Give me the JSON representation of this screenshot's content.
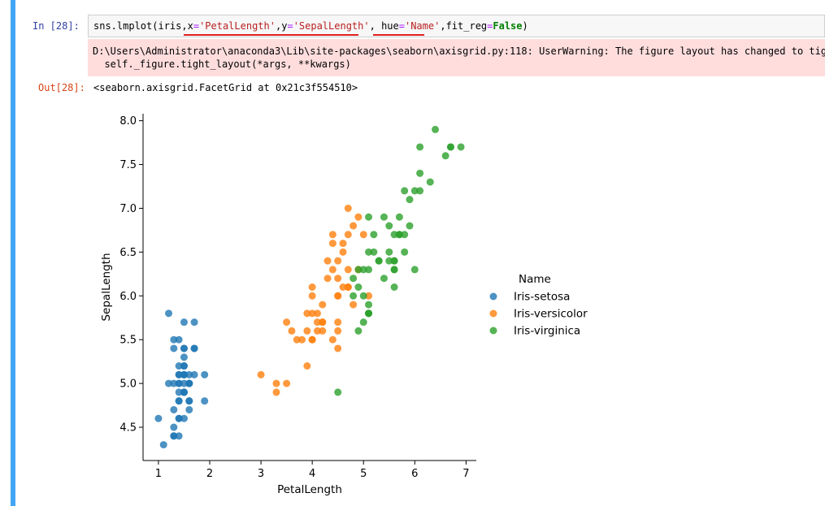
{
  "cell": {
    "in_prompt": "In  [28]:",
    "out_prompt": "Out[28]:",
    "code": {
      "part1": "sns.lmplot(iris,",
      "x_name": "x",
      "eq1": "=",
      "x_val": "'PetalLength'",
      "comma1": ",",
      "y_name": "y",
      "eq2": "=",
      "y_val": "'SepalLength'",
      "comma2": ", ",
      "hue_name": "hue",
      "eq3": "=",
      "hue_val": "'Name'",
      "part_fit": ",fit_reg",
      "eq4": "=",
      "false_kw": "False",
      "close": ")"
    },
    "stderr_line1": "D:\\Users\\Administrator\\anaconda3\\Lib\\site-packages\\seaborn\\axisgrid.py:118: UserWarning: The figure layout has changed to tight",
    "stderr_line2": "  self._figure.tight_layout(*args, **kwargs)",
    "output": "<seaborn.axisgrid.FacetGrid at 0x21c3f554510>",
    "underline_color": "#e02020"
  },
  "chart_data": {
    "type": "scatter",
    "xlabel": "PetalLength",
    "ylabel": "SepalLength",
    "xlim": [
      0.7,
      7.2
    ],
    "ylim": [
      4.12,
      8.08
    ],
    "xticks": [
      1,
      2,
      3,
      4,
      5,
      6,
      7
    ],
    "yticks": [
      "4.5",
      "5.0",
      "5.5",
      "6.0",
      "6.5",
      "7.0",
      "7.5",
      "8.0"
    ],
    "legend": {
      "title": "Name",
      "placement": "right"
    },
    "series": [
      {
        "name": "Iris-setosa",
        "color": "#1f77b4",
        "points": [
          [
            1.4,
            5.1
          ],
          [
            1.4,
            4.9
          ],
          [
            1.3,
            4.7
          ],
          [
            1.5,
            4.6
          ],
          [
            1.4,
            5.0
          ],
          [
            1.7,
            5.4
          ],
          [
            1.4,
            4.6
          ],
          [
            1.5,
            5.0
          ],
          [
            1.4,
            4.4
          ],
          [
            1.5,
            4.9
          ],
          [
            1.5,
            5.4
          ],
          [
            1.6,
            4.8
          ],
          [
            1.4,
            4.8
          ],
          [
            1.1,
            4.3
          ],
          [
            1.2,
            5.8
          ],
          [
            1.5,
            5.7
          ],
          [
            1.3,
            5.4
          ],
          [
            1.4,
            5.1
          ],
          [
            1.7,
            5.7
          ],
          [
            1.5,
            5.1
          ],
          [
            1.7,
            5.4
          ],
          [
            1.5,
            5.1
          ],
          [
            1.0,
            4.6
          ],
          [
            1.7,
            5.1
          ],
          [
            1.9,
            4.8
          ],
          [
            1.6,
            5.0
          ],
          [
            1.6,
            5.0
          ],
          [
            1.5,
            5.2
          ],
          [
            1.4,
            5.2
          ],
          [
            1.6,
            4.7
          ],
          [
            1.6,
            4.8
          ],
          [
            1.5,
            5.4
          ],
          [
            1.5,
            5.2
          ],
          [
            1.4,
            5.5
          ],
          [
            1.5,
            4.9
          ],
          [
            1.2,
            5.0
          ],
          [
            1.3,
            5.5
          ],
          [
            1.5,
            4.9
          ],
          [
            1.3,
            4.4
          ],
          [
            1.5,
            5.1
          ],
          [
            1.3,
            5.0
          ],
          [
            1.3,
            4.5
          ],
          [
            1.3,
            4.4
          ],
          [
            1.6,
            5.0
          ],
          [
            1.9,
            5.1
          ],
          [
            1.4,
            4.8
          ],
          [
            1.6,
            5.1
          ],
          [
            1.4,
            4.6
          ],
          [
            1.5,
            5.3
          ],
          [
            1.4,
            5.0
          ]
        ]
      },
      {
        "name": "Iris-versicolor",
        "color": "#ff7f0e",
        "points": [
          [
            4.7,
            7.0
          ],
          [
            4.5,
            6.4
          ],
          [
            4.9,
            6.9
          ],
          [
            4.0,
            5.5
          ],
          [
            4.6,
            6.5
          ],
          [
            4.5,
            5.7
          ],
          [
            4.7,
            6.3
          ],
          [
            3.3,
            4.9
          ],
          [
            4.6,
            6.6
          ],
          [
            3.9,
            5.2
          ],
          [
            3.5,
            5.0
          ],
          [
            4.2,
            5.9
          ],
          [
            4.0,
            6.0
          ],
          [
            4.7,
            6.1
          ],
          [
            3.6,
            5.6
          ],
          [
            4.4,
            6.7
          ],
          [
            4.5,
            5.6
          ],
          [
            4.1,
            5.8
          ],
          [
            4.5,
            6.2
          ],
          [
            3.9,
            5.6
          ],
          [
            4.8,
            5.9
          ],
          [
            4.0,
            6.1
          ],
          [
            4.9,
            6.3
          ],
          [
            4.7,
            6.1
          ],
          [
            4.3,
            6.4
          ],
          [
            4.4,
            6.6
          ],
          [
            4.8,
            6.8
          ],
          [
            5.0,
            6.7
          ],
          [
            4.5,
            6.0
          ],
          [
            3.5,
            5.7
          ],
          [
            3.8,
            5.5
          ],
          [
            3.7,
            5.5
          ],
          [
            3.9,
            5.8
          ],
          [
            5.1,
            6.0
          ],
          [
            4.5,
            5.4
          ],
          [
            4.5,
            6.0
          ],
          [
            4.7,
            6.7
          ],
          [
            4.4,
            6.3
          ],
          [
            4.1,
            5.6
          ],
          [
            4.0,
            5.5
          ],
          [
            4.4,
            5.5
          ],
          [
            4.6,
            6.1
          ],
          [
            4.0,
            5.8
          ],
          [
            3.3,
            5.0
          ],
          [
            4.2,
            5.6
          ],
          [
            4.2,
            5.7
          ],
          [
            4.2,
            5.7
          ],
          [
            4.3,
            6.2
          ],
          [
            3.0,
            5.1
          ],
          [
            4.1,
            5.7
          ]
        ]
      },
      {
        "name": "Iris-virginica",
        "color": "#2ca02c",
        "points": [
          [
            6.0,
            6.3
          ],
          [
            5.1,
            5.8
          ],
          [
            5.9,
            7.1
          ],
          [
            5.6,
            6.3
          ],
          [
            5.8,
            6.5
          ],
          [
            6.6,
            7.6
          ],
          [
            4.5,
            4.9
          ],
          [
            6.3,
            7.3
          ],
          [
            5.8,
            6.7
          ],
          [
            6.1,
            7.2
          ],
          [
            5.1,
            6.5
          ],
          [
            5.3,
            6.4
          ],
          [
            5.5,
            6.8
          ],
          [
            5.0,
            5.7
          ],
          [
            5.1,
            5.8
          ],
          [
            5.3,
            6.4
          ],
          [
            5.5,
            6.5
          ],
          [
            6.7,
            7.7
          ],
          [
            6.9,
            7.7
          ],
          [
            5.0,
            6.0
          ],
          [
            5.7,
            6.9
          ],
          [
            4.9,
            5.6
          ],
          [
            6.7,
            7.7
          ],
          [
            4.9,
            6.3
          ],
          [
            5.7,
            6.7
          ],
          [
            6.0,
            7.2
          ],
          [
            4.8,
            6.2
          ],
          [
            4.9,
            6.1
          ],
          [
            5.6,
            6.4
          ],
          [
            5.8,
            7.2
          ],
          [
            6.1,
            7.4
          ],
          [
            6.4,
            7.9
          ],
          [
            5.6,
            6.4
          ],
          [
            5.1,
            6.3
          ],
          [
            5.6,
            6.1
          ],
          [
            6.1,
            7.7
          ],
          [
            5.6,
            6.3
          ],
          [
            5.5,
            6.4
          ],
          [
            4.8,
            6.0
          ],
          [
            5.4,
            6.9
          ],
          [
            5.6,
            6.7
          ],
          [
            5.1,
            6.9
          ],
          [
            5.1,
            5.8
          ],
          [
            5.9,
            6.8
          ],
          [
            5.7,
            6.7
          ],
          [
            5.2,
            6.7
          ],
          [
            5.0,
            6.3
          ],
          [
            5.2,
            6.5
          ],
          [
            5.4,
            6.2
          ],
          [
            5.1,
            5.9
          ]
        ]
      }
    ]
  }
}
